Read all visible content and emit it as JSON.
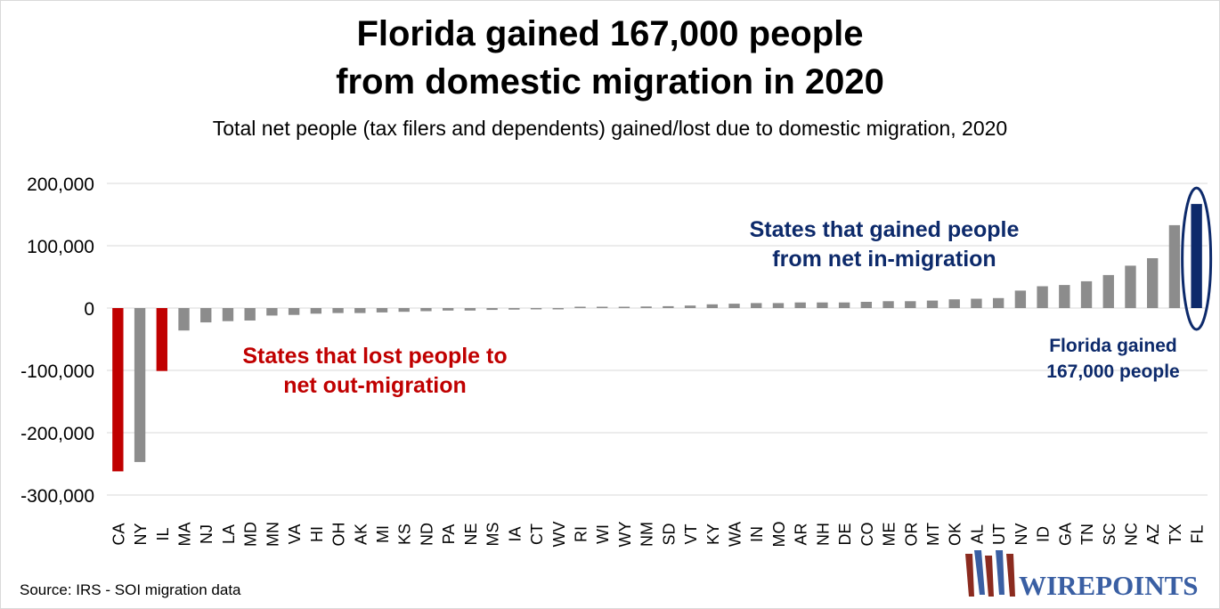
{
  "title_line1": "Florida gained 167,000 people",
  "title_line2": "from domestic migration in 2020",
  "subtitle": "Total net people (tax filers and dependents) gained/lost due to domestic migration, 2020",
  "source": "Source: IRS - SOI migration data",
  "logo_text": "WIREPOINTS",
  "colors": {
    "loss_highlight": "#c00000",
    "gain_highlight": "#0d2a6b",
    "default": "#8c8c8c",
    "grid": "#d9d9d9"
  },
  "chart_data": {
    "type": "bar",
    "title": "Florida gained 167,000 people from domestic migration in 2020",
    "subtitle": "Total net people (tax filers and dependents) gained/lost due to domestic migration, 2020",
    "categories": [
      "CA",
      "NY",
      "IL",
      "MA",
      "NJ",
      "LA",
      "MD",
      "MN",
      "VA",
      "HI",
      "OH",
      "AK",
      "MI",
      "KS",
      "ND",
      "PA",
      "NE",
      "MS",
      "IA",
      "CT",
      "WV",
      "RI",
      "WI",
      "WY",
      "NM",
      "SD",
      "VT",
      "KY",
      "WA",
      "IN",
      "MO",
      "AR",
      "NH",
      "DE",
      "CO",
      "ME",
      "OR",
      "MT",
      "OK",
      "AL",
      "UT",
      "NV",
      "ID",
      "GA",
      "TN",
      "SC",
      "NC",
      "AZ",
      "TX",
      "FL"
    ],
    "values": [
      -262000,
      -247000,
      -101000,
      -36000,
      -23000,
      -21000,
      -20000,
      -12000,
      -11000,
      -9000,
      -8000,
      -8000,
      -7000,
      -6000,
      -5000,
      -4000,
      -4000,
      -3000,
      -2500,
      -2000,
      -500,
      2000,
      2000,
      2000,
      2500,
      3000,
      4000,
      6000,
      7000,
      8000,
      8000,
      9000,
      9000,
      9000,
      10000,
      11000,
      11000,
      12000,
      14000,
      15000,
      16000,
      28000,
      35000,
      37000,
      43000,
      53000,
      68000,
      80000,
      133000,
      167000
    ],
    "highlight": {
      "CA": "loss",
      "IL": "loss",
      "FL": "gain"
    },
    "ylim": [
      -300000,
      200000
    ],
    "yticks": [
      200000,
      100000,
      0,
      -100000,
      -200000,
      -300000
    ],
    "ytick_labels": [
      "200,000",
      "100,000",
      "0",
      "-100,000",
      "-200,000",
      "-300,000"
    ],
    "grid": true,
    "annotations": {
      "loss": {
        "lines": [
          "States that lost people to",
          "net out-migration"
        ]
      },
      "gain": {
        "lines": [
          "States that gained people",
          "from net in-migration"
        ]
      },
      "florida": {
        "lines": [
          "Florida gained",
          "167,000 people"
        ]
      }
    }
  }
}
